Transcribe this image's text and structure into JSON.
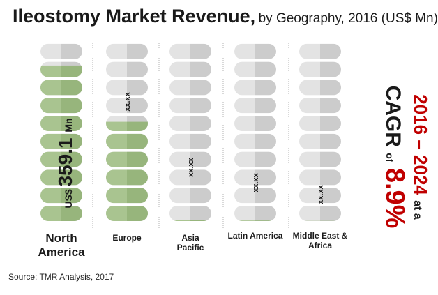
{
  "title": {
    "main": "Ileostomy Market Revenue,",
    "sub": "by Geography, 2016 (US$ Mn)"
  },
  "source": "Source: TMR Analysis, 2017",
  "cagr": {
    "period": "2016 – 2024",
    "at": "at a",
    "label": "CAGR",
    "of": "of",
    "value": "8.9%"
  },
  "colors": {
    "filled": "#a9c490",
    "filled_dark": "#97b57c",
    "empty": "#e3e3e3",
    "empty_dark": "#cccccc",
    "accent": "#c00000"
  },
  "chart_data": {
    "type": "bar",
    "categories": [
      "North America",
      "Europe",
      "Asia Pacific",
      "Latin America",
      "Middle East & Africa"
    ],
    "category_labels": [
      [
        "North",
        "America"
      ],
      [
        "Europe"
      ],
      [
        "Asia",
        "Pacific"
      ],
      [
        "Latin America"
      ],
      [
        "Middle East &",
        "Africa"
      ]
    ],
    "values": [
      359.1,
      230,
      2.5,
      1.5,
      0.5
    ],
    "value_labels": [
      "US$ 359.1 Mn",
      "xx.xx",
      "xx.xx",
      "xx.xx",
      "xx.xx"
    ],
    "value_label_parts": {
      "prefix": "US$",
      "number": "359.1",
      "unit": "Mn"
    },
    "units_per_column": 10,
    "column_max": 410
  }
}
